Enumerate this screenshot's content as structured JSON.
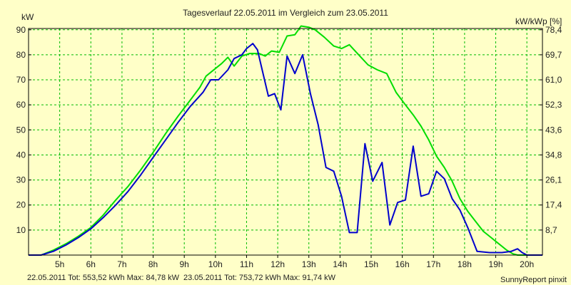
{
  "chart_data": {
    "type": "line",
    "title": "Tagesverlauf 22.05.2011 im Vergleich zum 23.05.2011",
    "ylabel_left": "kW",
    "ylabel_right": "kW/kWp [%]",
    "xlim": [
      4.0,
      20.5
    ],
    "ylim": [
      0,
      90.5
    ],
    "y_ticks": [
      10,
      20,
      30,
      40,
      50,
      60,
      70,
      80,
      90
    ],
    "y_right_ticks": [
      "8,7",
      "17,4",
      "26,1",
      "34,8",
      "43,6",
      "52,3",
      "61,0",
      "69,7",
      "78,4"
    ],
    "x_ticks": [
      {
        "x": 5,
        "label": "5h"
      },
      {
        "x": 6,
        "label": "6h"
      },
      {
        "x": 7,
        "label": "7h"
      },
      {
        "x": 8,
        "label": "8h"
      },
      {
        "x": 9,
        "label": "9h"
      },
      {
        "x": 10,
        "label": "10h"
      },
      {
        "x": 11,
        "label": "11h"
      },
      {
        "x": 12,
        "label": "12h"
      },
      {
        "x": 13,
        "label": "13h"
      },
      {
        "x": 14,
        "label": "14h"
      },
      {
        "x": 15,
        "label": "15h"
      },
      {
        "x": 16,
        "label": "16h"
      },
      {
        "x": 17,
        "label": "17h"
      },
      {
        "x": 18,
        "label": "18h"
      },
      {
        "x": 19,
        "label": "19h"
      },
      {
        "x": 20,
        "label": "20h"
      }
    ],
    "grid": true,
    "series": [
      {
        "name": "22.05.2011",
        "color": "#0000cc",
        "points": [
          [
            4.0,
            0
          ],
          [
            4.4,
            0
          ],
          [
            4.8,
            1.5
          ],
          [
            5.2,
            4
          ],
          [
            5.6,
            7
          ],
          [
            6.0,
            10.5
          ],
          [
            6.4,
            15
          ],
          [
            6.8,
            20
          ],
          [
            7.2,
            25.5
          ],
          [
            7.6,
            32
          ],
          [
            8.0,
            39
          ],
          [
            8.4,
            46
          ],
          [
            8.8,
            53
          ],
          [
            9.2,
            59.5
          ],
          [
            9.6,
            65
          ],
          [
            9.85,
            70
          ],
          [
            10.1,
            70
          ],
          [
            10.4,
            74
          ],
          [
            10.6,
            78.5
          ],
          [
            10.85,
            80
          ],
          [
            11.0,
            82.5
          ],
          [
            11.2,
            84.5
          ],
          [
            11.35,
            82
          ],
          [
            11.5,
            74
          ],
          [
            11.7,
            63.5
          ],
          [
            11.9,
            64.5
          ],
          [
            12.1,
            58
          ],
          [
            12.3,
            79.5
          ],
          [
            12.55,
            72.5
          ],
          [
            12.8,
            80
          ],
          [
            13.05,
            64.5
          ],
          [
            13.3,
            52
          ],
          [
            13.55,
            35
          ],
          [
            13.8,
            33.5
          ],
          [
            14.05,
            23.5
          ],
          [
            14.3,
            9
          ],
          [
            14.55,
            9
          ],
          [
            14.8,
            44.5
          ],
          [
            15.05,
            29.5
          ],
          [
            15.35,
            37
          ],
          [
            15.6,
            12
          ],
          [
            15.85,
            21
          ],
          [
            16.1,
            22
          ],
          [
            16.35,
            43.5
          ],
          [
            16.6,
            23.5
          ],
          [
            16.85,
            24.5
          ],
          [
            17.1,
            33.5
          ],
          [
            17.35,
            30.5
          ],
          [
            17.6,
            22.5
          ],
          [
            17.85,
            18
          ],
          [
            18.1,
            11
          ],
          [
            18.4,
            1.5
          ],
          [
            18.8,
            1
          ],
          [
            19.2,
            1
          ],
          [
            19.5,
            1.5
          ],
          [
            19.7,
            2.5
          ],
          [
            19.85,
            1
          ],
          [
            20.0,
            0
          ],
          [
            20.5,
            0
          ]
        ]
      },
      {
        "name": "23.05.2011",
        "color": "#00dd00",
        "points": [
          [
            4.0,
            0
          ],
          [
            4.4,
            0
          ],
          [
            4.8,
            2
          ],
          [
            5.2,
            4.5
          ],
          [
            5.6,
            7.5
          ],
          [
            6.0,
            11
          ],
          [
            6.4,
            16
          ],
          [
            6.8,
            22
          ],
          [
            7.2,
            27.5
          ],
          [
            7.6,
            34
          ],
          [
            8.0,
            41
          ],
          [
            8.4,
            48.5
          ],
          [
            8.8,
            55.5
          ],
          [
            9.2,
            62
          ],
          [
            9.5,
            67
          ],
          [
            9.7,
            71.5
          ],
          [
            10.0,
            74.5
          ],
          [
            10.2,
            76.5
          ],
          [
            10.4,
            79
          ],
          [
            10.6,
            75.5
          ],
          [
            10.85,
            79.5
          ],
          [
            11.1,
            80.5
          ],
          [
            11.4,
            80.5
          ],
          [
            11.6,
            79.5
          ],
          [
            11.8,
            81.5
          ],
          [
            12.05,
            81
          ],
          [
            12.3,
            87.5
          ],
          [
            12.55,
            88
          ],
          [
            12.75,
            91.5
          ],
          [
            13.0,
            91
          ],
          [
            13.2,
            90
          ],
          [
            13.5,
            87
          ],
          [
            13.8,
            83.5
          ],
          [
            14.05,
            82.5
          ],
          [
            14.3,
            84
          ],
          [
            14.6,
            80
          ],
          [
            14.9,
            76
          ],
          [
            15.2,
            74
          ],
          [
            15.5,
            72.5
          ],
          [
            15.8,
            65
          ],
          [
            16.1,
            60
          ],
          [
            16.35,
            56
          ],
          [
            16.6,
            51.5
          ],
          [
            16.85,
            46
          ],
          [
            17.1,
            39.5
          ],
          [
            17.35,
            35
          ],
          [
            17.6,
            29.5
          ],
          [
            17.85,
            22.5
          ],
          [
            18.1,
            17.5
          ],
          [
            18.35,
            13.5
          ],
          [
            18.6,
            9.5
          ],
          [
            18.85,
            7
          ],
          [
            19.1,
            4.5
          ],
          [
            19.35,
            2
          ],
          [
            19.55,
            0.5
          ],
          [
            19.7,
            0
          ],
          [
            20.5,
            0
          ]
        ]
      }
    ],
    "footer": {
      "s1_text": "22.05.2011 Tot: 553,52 kWh Max: 84,78 kW",
      "s2_text": "23.05.2011 Tot: 753,72 kWh Max: 91,74 kW",
      "credit": "SunnyReport pinxit"
    }
  }
}
